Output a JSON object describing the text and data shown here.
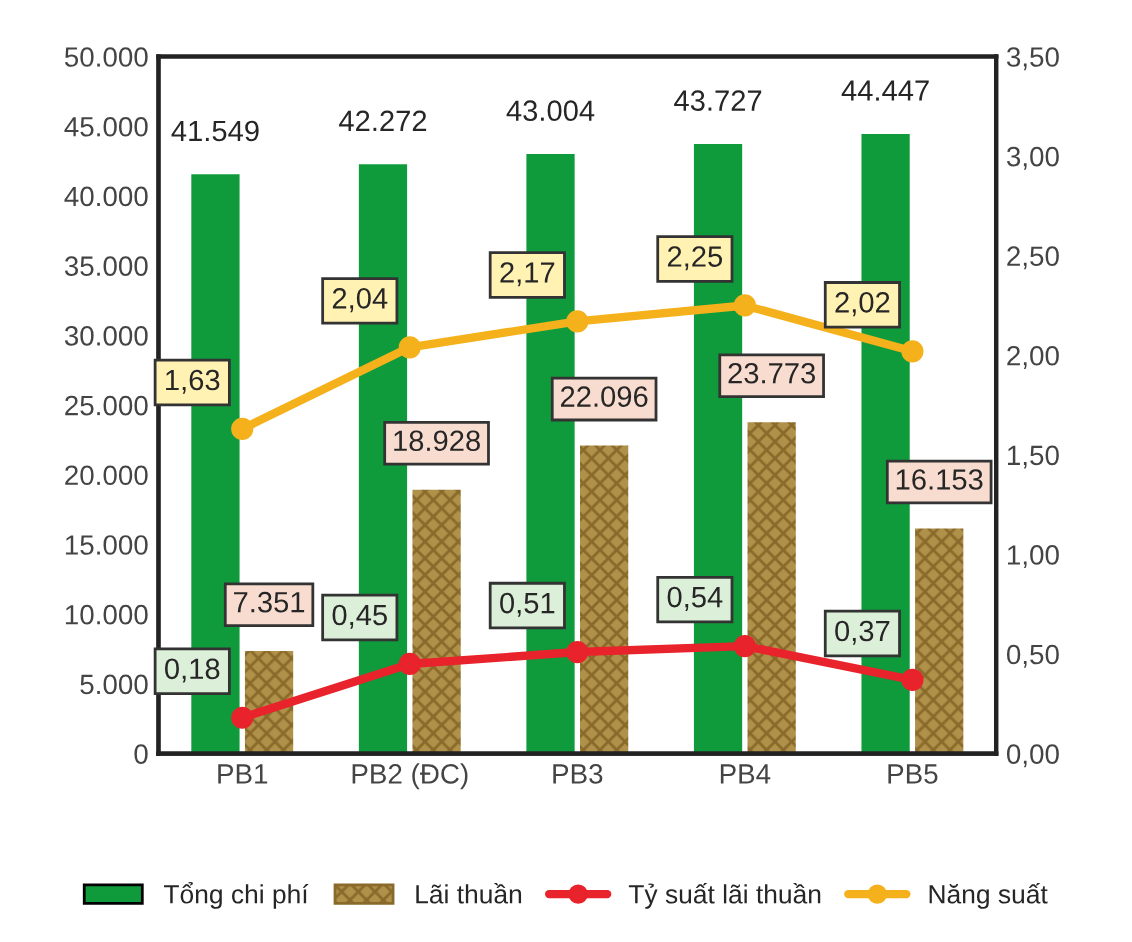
{
  "chart_data": {
    "type": "bar",
    "categories": [
      "PB1",
      "PB2 (ĐC)",
      "PB3",
      "PB4",
      "PB5"
    ],
    "series": [
      {
        "name": "Tổng chi phí",
        "color": "#0f9b3c",
        "values": [
          41549,
          42272,
          43004,
          43727,
          44447
        ],
        "value_labels": [
          "41.549",
          "42.272",
          "43.004",
          "43.727",
          "44.447"
        ]
      },
      {
        "name": "Lãi thuần",
        "color": "#b0914a",
        "values": [
          7351,
          18928,
          22096,
          23773,
          16153
        ],
        "value_labels": [
          "7.351",
          "18.928",
          "22.096",
          "23.773",
          "16.153"
        ]
      },
      {
        "name": "Tỷ suất lãi thuần",
        "type": "line",
        "axis": "y2",
        "marker": "circle",
        "color": "#e8232b",
        "values": [
          0.18,
          0.45,
          0.51,
          0.54,
          0.37
        ],
        "value_labels": [
          "0,18",
          "0,45",
          "0,51",
          "0,54",
          "0,37"
        ]
      },
      {
        "name": "Năng suất",
        "type": "line",
        "axis": "y2",
        "marker": "circle",
        "color": "#f5b11b",
        "values": [
          1.63,
          2.04,
          2.17,
          2.25,
          2.02
        ],
        "value_labels": [
          "1,63",
          "2,04",
          "2,17",
          "2,25",
          "2,02"
        ]
      }
    ],
    "ylim": [
      0,
      50000
    ],
    "yticks": [
      {
        "value": 0,
        "label": "0"
      },
      {
        "value": 5000,
        "label": "5.000"
      },
      {
        "value": 10000,
        "label": "10.000"
      },
      {
        "value": 15000,
        "label": "15.000"
      },
      {
        "value": 20000,
        "label": "20.000"
      },
      {
        "value": 25000,
        "label": "25.000"
      },
      {
        "value": 30000,
        "label": "30.000"
      },
      {
        "value": 35000,
        "label": "35.000"
      },
      {
        "value": 40000,
        "label": "40.000"
      },
      {
        "value": 45000,
        "label": "45.000"
      },
      {
        "value": 50000,
        "label": "50.000"
      }
    ],
    "y2lim": [
      0,
      3.5
    ],
    "y2ticks": [
      {
        "value": 0,
        "label": "0,00"
      },
      {
        "value": 0.5,
        "label": "0,50"
      },
      {
        "value": 1,
        "label": "1,00"
      },
      {
        "value": 1.5,
        "label": "1,50"
      },
      {
        "value": 2,
        "label": "2,00"
      },
      {
        "value": 2.5,
        "label": "2,50"
      },
      {
        "value": 3,
        "label": "3,00"
      },
      {
        "value": 3.5,
        "label": "3,50"
      }
    ],
    "grid": false,
    "legend": "bottom"
  }
}
